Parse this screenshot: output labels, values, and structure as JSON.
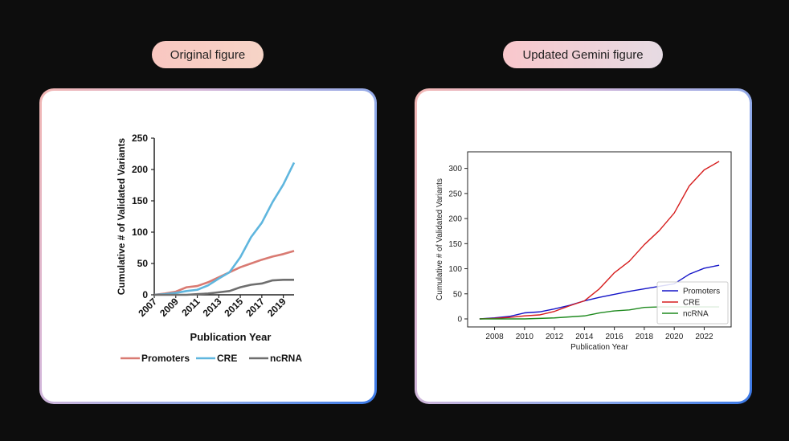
{
  "labels": {
    "left": "Original figure",
    "right": "Updated Gemini figure"
  },
  "chart_data": [
    {
      "type": "line",
      "title": "",
      "xlabel": "Publication Year",
      "ylabel": "Cumulative # of Validated Variants",
      "xlim": [
        2007,
        2020
      ],
      "ylim": [
        0,
        250
      ],
      "xticks": [
        "2007",
        "2009",
        "2011",
        "2013",
        "2015",
        "2017",
        "2019"
      ],
      "yticks": [
        "0",
        "50",
        "100",
        "150",
        "200",
        "250"
      ],
      "legend_position": "bottom",
      "x": [
        2007,
        2008,
        2009,
        2010,
        2011,
        2012,
        2013,
        2014,
        2015,
        2016,
        2017,
        2018,
        2019,
        2020
      ],
      "series": [
        {
          "name": "Promoters",
          "color": "#d97a72",
          "values": [
            0,
            2,
            5,
            12,
            14,
            20,
            28,
            36,
            44,
            50,
            56,
            61,
            65,
            70
          ]
        },
        {
          "name": "CRE",
          "color": "#5fb6de",
          "values": [
            0,
            1,
            3,
            6,
            8,
            15,
            26,
            36,
            60,
            92,
            115,
            148,
            176,
            211
          ]
        },
        {
          "name": "ncRNA",
          "color": "#6e6e6e",
          "values": [
            0,
            0,
            0,
            0,
            1,
            2,
            4,
            6,
            12,
            16,
            18,
            23,
            24,
            24
          ]
        }
      ]
    },
    {
      "type": "line",
      "title": "",
      "xlabel": "Publication Year",
      "ylabel": "Cumulative # of Validated Variants",
      "xlim": [
        2006.2,
        2023.8
      ],
      "ylim": [
        -16,
        333
      ],
      "xticks": [
        "2008",
        "2010",
        "2012",
        "2014",
        "2016",
        "2018",
        "2020",
        "2022"
      ],
      "yticks": [
        "0",
        "50",
        "100",
        "150",
        "200",
        "250",
        "300"
      ],
      "legend_position": "lower right",
      "x": [
        2007,
        2008,
        2009,
        2010,
        2011,
        2012,
        2013,
        2014,
        2015,
        2016,
        2017,
        2018,
        2019,
        2020,
        2021,
        2022,
        2023
      ],
      "series": [
        {
          "name": "Promoters",
          "color": "#1515c8",
          "values": [
            0,
            2,
            5,
            12,
            14,
            20,
            27,
            36,
            43,
            49,
            55,
            60,
            65,
            70,
            89,
            101,
            107
          ]
        },
        {
          "name": "CRE",
          "color": "#d61e1e",
          "values": [
            0,
            1,
            3,
            6,
            8,
            15,
            26,
            36,
            60,
            92,
            115,
            148,
            176,
            211,
            265,
            297,
            314
          ]
        },
        {
          "name": "ncRNA",
          "color": "#1f8a1f",
          "values": [
            0,
            0,
            0,
            0,
            1,
            2,
            4,
            6,
            12,
            16,
            18,
            23,
            24,
            24,
            24,
            24,
            24
          ]
        }
      ]
    }
  ]
}
